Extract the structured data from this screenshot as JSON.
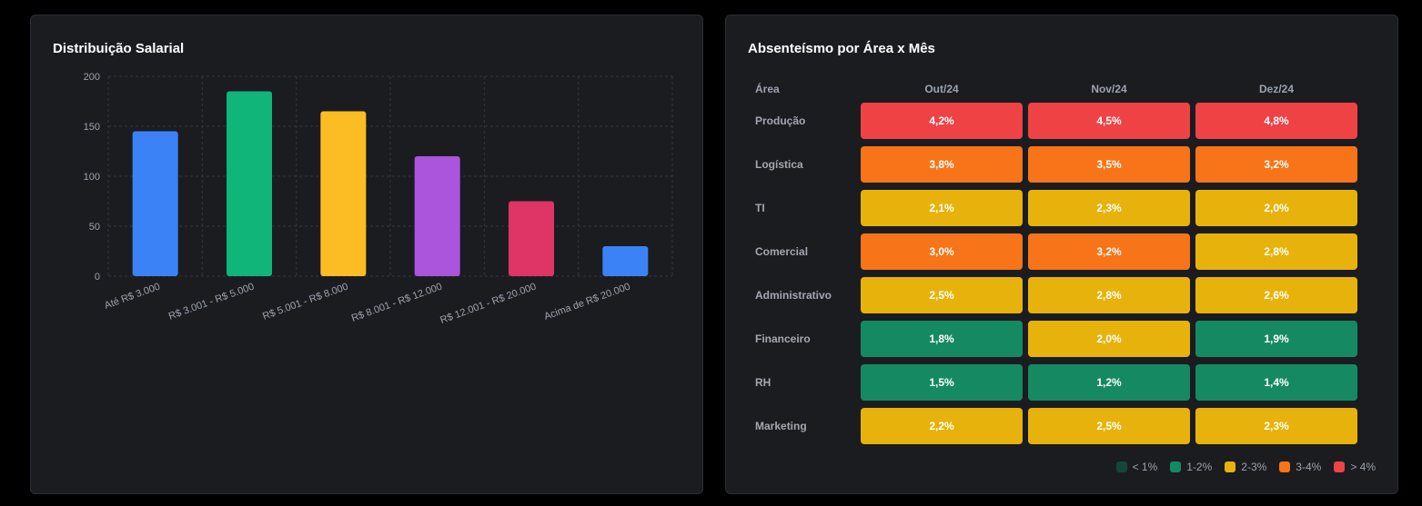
{
  "colors": {
    "lt1": "#14463a",
    "1to2": "#158a62",
    "2to3": "#e8b20c",
    "3to4": "#f77418",
    "gt4": "#ee4245"
  },
  "salary": {
    "title": "Distribuição Salarial"
  },
  "chart_data": {
    "type": "bar",
    "title": "Distribuição Salarial",
    "xlabel": "",
    "ylabel": "",
    "ylim": [
      0,
      200
    ],
    "yticks": [
      0,
      50,
      100,
      150,
      200
    ],
    "categories": [
      "Até R$ 3.000",
      "R$ 3.001 - R$ 5.000",
      "R$ 5.001 - R$ 8.000",
      "R$ 8.001 - R$ 12.000",
      "R$ 12.001 - R$ 20.000",
      "Acima de R$ 20.000"
    ],
    "values": [
      145,
      185,
      165,
      120,
      75,
      30
    ],
    "bar_colors": [
      "#3b82f6",
      "#10b57a",
      "#fbbd23",
      "#ab55dc",
      "#df3466",
      "#3b82f6"
    ],
    "grid": true
  },
  "absent": {
    "title": "Absenteísmo por Área x Mês",
    "area_header": "Área",
    "months": [
      "Out/24",
      "Nov/24",
      "Dez/24"
    ],
    "rows": [
      {
        "area": "Produção",
        "values": [
          "4,2%",
          "4,5%",
          "4,8%"
        ],
        "levels": [
          "gt4",
          "gt4",
          "gt4"
        ]
      },
      {
        "area": "Logística",
        "values": [
          "3,8%",
          "3,5%",
          "3,2%"
        ],
        "levels": [
          "3to4",
          "3to4",
          "3to4"
        ]
      },
      {
        "area": "TI",
        "values": [
          "2,1%",
          "2,3%",
          "2,0%"
        ],
        "levels": [
          "2to3",
          "2to3",
          "2to3"
        ]
      },
      {
        "area": "Comercial",
        "values": [
          "3,0%",
          "3,2%",
          "2,8%"
        ],
        "levels": [
          "3to4",
          "3to4",
          "2to3"
        ]
      },
      {
        "area": "Administrativo",
        "values": [
          "2,5%",
          "2,8%",
          "2,6%"
        ],
        "levels": [
          "2to3",
          "2to3",
          "2to3"
        ]
      },
      {
        "area": "Financeiro",
        "values": [
          "1,8%",
          "2,0%",
          "1,9%"
        ],
        "levels": [
          "1to2",
          "2to3",
          "1to2"
        ]
      },
      {
        "area": "RH",
        "values": [
          "1,5%",
          "1,2%",
          "1,4%"
        ],
        "levels": [
          "1to2",
          "1to2",
          "1to2"
        ]
      },
      {
        "area": "Marketing",
        "values": [
          "2,2%",
          "2,5%",
          "2,3%"
        ],
        "levels": [
          "2to3",
          "2to3",
          "2to3"
        ]
      }
    ],
    "legend": [
      {
        "key": "lt1",
        "label": "< 1%"
      },
      {
        "key": "1to2",
        "label": "1-2%"
      },
      {
        "key": "2to3",
        "label": "2-3%"
      },
      {
        "key": "3to4",
        "label": "3-4%"
      },
      {
        "key": "gt4",
        "label": "> 4%"
      }
    ]
  }
}
